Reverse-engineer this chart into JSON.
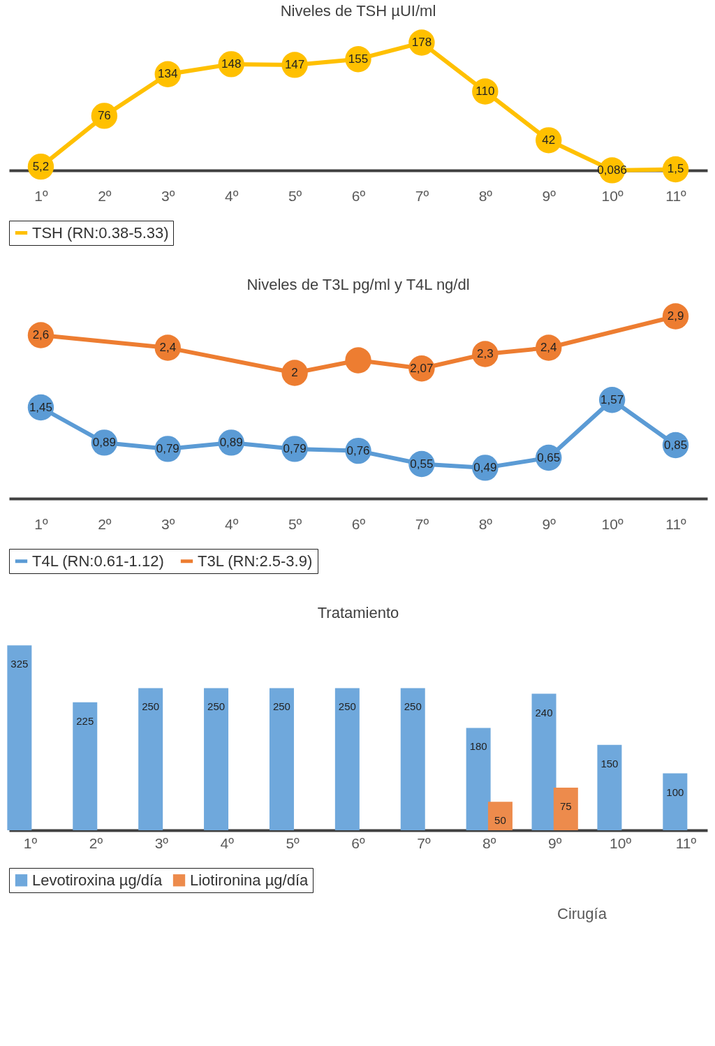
{
  "chart_data": [
    {
      "type": "line",
      "title": "Niveles de TSH µUI/ml",
      "categories": [
        "1º",
        "2º",
        "3º",
        "4º",
        "5º",
        "6º",
        "7º",
        "8º",
        "9º",
        "10º",
        "11º"
      ],
      "marker": "circle",
      "legend": "bottom",
      "series": [
        {
          "name": "TSH (RN:0.38-5.33)",
          "color": "#ffc000",
          "values": [
            5.2,
            76,
            134,
            148,
            147,
            155,
            178,
            110,
            42,
            0.086,
            1.5
          ],
          "value_labels": [
            "5,2",
            "76",
            "134",
            "148",
            "147",
            "155",
            "178",
            "110",
            "42",
            "0,086",
            "1,5"
          ]
        }
      ]
    },
    {
      "type": "line",
      "title": "Niveles de T3L pg/ml y T4L ng/dl",
      "categories": [
        "1º",
        "2º",
        "3º",
        "4º",
        "5º",
        "6º",
        "7º",
        "8º",
        "9º",
        "10º",
        "11º"
      ],
      "marker": "circle",
      "legend": "bottom",
      "series": [
        {
          "name": "T4L (RN:0.61-1.12)",
          "color": "#5b9bd5",
          "values": [
            1.45,
            0.89,
            0.79,
            0.89,
            0.79,
            0.76,
            0.55,
            0.49,
            0.65,
            1.57,
            0.85
          ],
          "value_labels": [
            "1,45",
            "0,89",
            "0,79",
            "0,89",
            "0,79",
            "0,76",
            "0,55",
            "0,49",
            "0,65",
            "1,57",
            "0,85"
          ]
        },
        {
          "name": "T3L (RN:2.5-3.9)",
          "color": "#ed7d31",
          "values": [
            2.6,
            null,
            2.4,
            null,
            2.0,
            2.2,
            2.07,
            2.3,
            2.4,
            null,
            2.9
          ],
          "value_labels": [
            "2,6",
            null,
            "2,4",
            null,
            "2",
            null,
            "2,07",
            "2,3",
            "2,4",
            null,
            "2,9"
          ]
        }
      ]
    },
    {
      "type": "bar",
      "title": "Tratamiento",
      "categories": [
        "1º",
        "2º",
        "3º",
        "4º",
        "5º",
        "6º",
        "7º",
        "8º",
        "9º",
        "10º",
        "11º"
      ],
      "legend": "bottom",
      "annotations": [
        "Cirugía"
      ],
      "series": [
        {
          "name": "Levotiroxina µg/día",
          "color": "#6fa8dc",
          "values": [
            325,
            225,
            250,
            250,
            250,
            250,
            250,
            180,
            240,
            150,
            100
          ],
          "value_labels": [
            "325",
            "225",
            "250",
            "250",
            "250",
            "250",
            "250",
            "180",
            "240",
            "150",
            "100"
          ]
        },
        {
          "name": "Liotironina µg/día",
          "color": "#ed8b4c",
          "values": [
            null,
            null,
            null,
            null,
            null,
            null,
            null,
            50,
            75,
            null,
            null
          ],
          "value_labels": [
            null,
            null,
            null,
            null,
            null,
            null,
            null,
            "50",
            "75",
            null,
            null
          ]
        }
      ]
    }
  ]
}
